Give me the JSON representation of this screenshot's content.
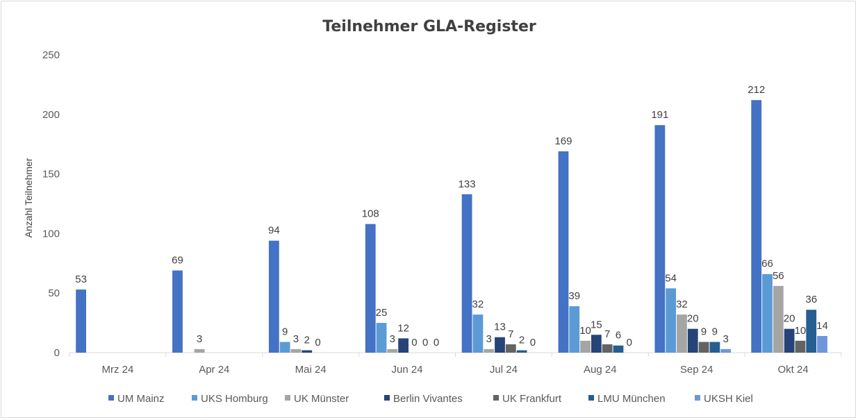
{
  "chart_data": {
    "type": "bar",
    "title": "Teilnehmer GLA-Register",
    "xlabel": "",
    "ylabel": "Anzahl Teilnehmer",
    "ylim": [
      0,
      250
    ],
    "yticks": [
      0,
      50,
      100,
      150,
      200,
      250
    ],
    "grid": false,
    "legend_position": "bottom",
    "categories": [
      "Mrz 24",
      "Apr 24",
      "Mai 24",
      "Jun 24",
      "Jul 24",
      "Aug 24",
      "Sep 24",
      "Okt 24"
    ],
    "series": [
      {
        "name": "UM Mainz",
        "color": "#4472C4",
        "values": [
          53,
          69,
          94,
          108,
          133,
          169,
          191,
          212
        ],
        "labels": [
          "53",
          "69",
          "94",
          "108",
          "133",
          "169",
          "191",
          "212"
        ]
      },
      {
        "name": "UKS Homburg",
        "color": "#5B9BD5",
        "values": [
          null,
          null,
          9,
          25,
          32,
          39,
          54,
          66
        ],
        "labels": [
          "",
          "",
          "9",
          "25",
          "32",
          "39",
          "54",
          "66"
        ]
      },
      {
        "name": "UK Münster",
        "color": "#A5A5A5",
        "values": [
          null,
          3,
          3,
          3,
          3,
          10,
          32,
          56
        ],
        "labels": [
          "",
          "3",
          "3",
          "3",
          "3",
          "10",
          "32",
          "56"
        ]
      },
      {
        "name": "Berlin Vivantes",
        "color": "#264478",
        "values": [
          null,
          null,
          2,
          12,
          13,
          15,
          20,
          20
        ],
        "labels": [
          "",
          "",
          "2",
          "12",
          "13",
          "15",
          "20",
          "20"
        ]
      },
      {
        "name": "UK Frankfurt",
        "color": "#636363",
        "values": [
          null,
          null,
          0,
          0,
          7,
          7,
          9,
          10
        ],
        "labels": [
          "",
          "",
          "0",
          "0",
          "7",
          "7",
          "9",
          "10"
        ]
      },
      {
        "name": "LMU München",
        "color": "#255E91",
        "values": [
          null,
          null,
          null,
          0,
          2,
          6,
          9,
          36
        ],
        "labels": [
          "",
          "",
          "",
          "0",
          "2",
          "6",
          "9",
          "36"
        ]
      },
      {
        "name": "UKSH Kiel",
        "color": "#6F96DA",
        "values": [
          null,
          null,
          null,
          0,
          0,
          0,
          3,
          14
        ],
        "labels": [
          "",
          "",
          "",
          "0",
          "0",
          "0",
          "3",
          "14"
        ]
      }
    ]
  }
}
